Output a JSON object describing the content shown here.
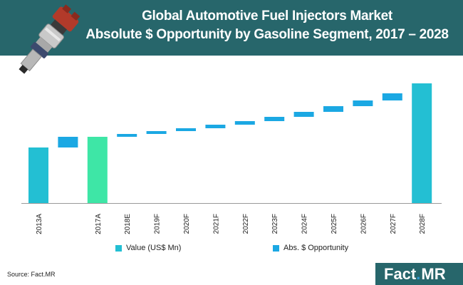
{
  "header": {
    "title_line1": "Global Automotive Fuel Injectors Market",
    "title_line2": "Absolute $ Opportunity by Gasoline Segment, 2017 – 2028"
  },
  "colors": {
    "header_bg": "#27666b",
    "value_bar": "#23bfd3",
    "value_bar_2017": "#3ee6a6",
    "opportunity_bar": "#1ba8e3",
    "logo_dot": "#2f9ad3"
  },
  "chart_data": {
    "type": "waterfall",
    "title": "Global Automotive Fuel Injectors Market Absolute $ Opportunity by Gasoline Segment, 2017 – 2028",
    "categories": [
      "2013A",
      "",
      "2017A",
      "2018E",
      "2019F",
      "2020F",
      "2021F",
      "2022F",
      "2023F",
      "2024F",
      "2025F",
      "2026F",
      "2027F",
      "2028F"
    ],
    "ylim": [
      0,
      175
    ],
    "grid": false,
    "legend_placement": "bottom",
    "series": [
      {
        "name": "Value (US$ Mn)",
        "values": [
          78,
          null,
          93,
          null,
          null,
          null,
          null,
          null,
          null,
          null,
          null,
          null,
          null,
          168
        ]
      },
      {
        "name": "Abs. $ Opportunity",
        "ranges": [
          null,
          [
            78,
            93
          ],
          null,
          [
            93,
            97
          ],
          [
            97,
            101
          ],
          [
            101,
            105
          ],
          [
            105,
            110
          ],
          [
            110,
            115
          ],
          [
            115,
            121
          ],
          [
            121,
            128
          ],
          [
            128,
            136
          ],
          [
            136,
            144
          ],
          [
            144,
            154
          ],
          null
        ]
      }
    ],
    "legend": [
      "Value (US$ Mn)",
      "Abs. $ Opportunity"
    ]
  },
  "footer": {
    "source": "Source: Fact.MR",
    "logo_main": "Fact",
    "logo_dot": ".",
    "logo_suffix": "MR"
  }
}
